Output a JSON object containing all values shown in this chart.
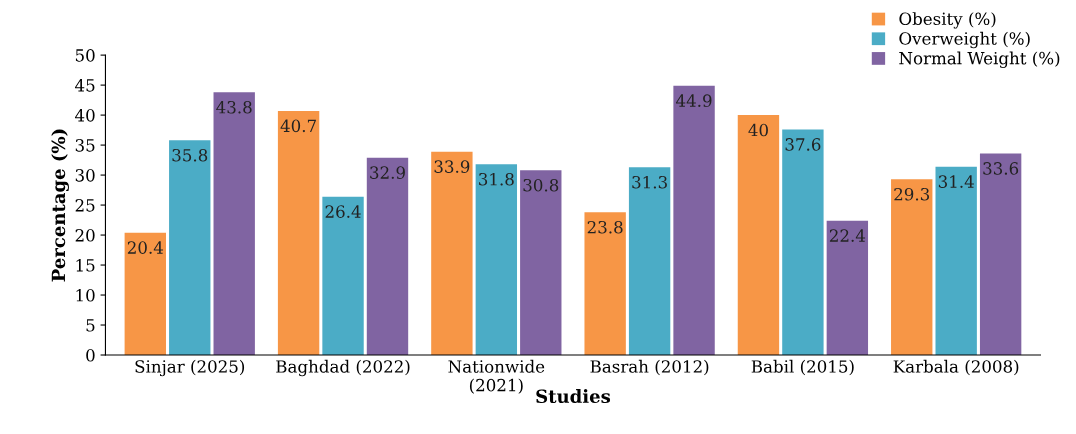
{
  "chart_data": {
    "type": "bar",
    "xlabel": "Studies",
    "ylabel": "Percentage (%)",
    "categories": [
      "Sinjar (2025)",
      "Baghdad (2022)",
      "Nationwide\n(2021)",
      "Basrah (2012)",
      "Babil (2015)",
      "Karbala (2008)"
    ],
    "series": [
      {
        "name": "Obesity (%)",
        "color": "#f79646",
        "values": [
          20.4,
          40.7,
          33.9,
          23.8,
          40,
          29.3
        ]
      },
      {
        "name": "Overweight (%)",
        "color": "#4bacc6",
        "values": [
          35.8,
          26.4,
          31.8,
          31.3,
          37.6,
          31.4
        ]
      },
      {
        "name": "Normal Weight (%)",
        "color": "#8064a2",
        "values": [
          43.8,
          32.9,
          30.8,
          44.9,
          22.4,
          33.6
        ]
      }
    ],
    "ylim": [
      0,
      50
    ],
    "yticks": [
      0,
      5,
      10,
      15,
      20,
      25,
      30,
      35,
      40,
      45,
      50
    ],
    "data_labels": true,
    "legend": "top right",
    "grid": false
  }
}
